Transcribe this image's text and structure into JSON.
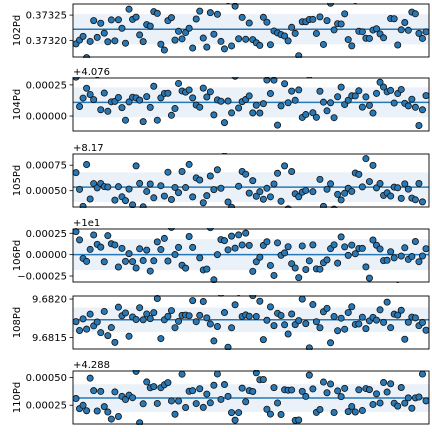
{
  "figure": {
    "background": "#ffffff",
    "band_color": "#eaf1f8",
    "point_fill": "#2878b5",
    "point_stroke": "#111111",
    "line_color": "#2878b5"
  },
  "chart_data": [
    {
      "type": "scatter",
      "ylabel": "102Pd",
      "offset_text": "",
      "yticks": [
        "0.37325",
        "0.37320"
      ],
      "ytick_values": [
        0.37325,
        0.3732
      ],
      "ylim": [
        0.373167,
        0.373272
      ],
      "band": [
        0.373192,
        0.373252
      ],
      "mean": 0.373222,
      "seed": 11,
      "n_points": 100
    },
    {
      "type": "scatter",
      "ylabel": "104Pd",
      "offset_text": "+4.076",
      "yticks": [
        "0.00025",
        "0.00000"
      ],
      "ytick_values": [
        0.00025,
        0.0
      ],
      "ylim": [
        -0.00012,
        0.000305
      ],
      "band": [
        -1e-05,
        0.00023
      ],
      "mean": 0.00011,
      "seed": 23,
      "n_points": 100
    },
    {
      "type": "scatter",
      "ylabel": "105Pd",
      "offset_text": "+8.17",
      "yticks": [
        "0.00075",
        "0.00050"
      ],
      "ytick_values": [
        0.00075,
        0.0005
      ],
      "ylim": [
        0.00034,
        0.00086
      ],
      "band": [
        0.00039,
        0.00068
      ],
      "mean": 0.000535,
      "seed": 37,
      "n_points": 100
    },
    {
      "type": "scatter",
      "ylabel": "106Pd",
      "offset_text": "+1e1",
      "yticks": [
        "0.00025",
        "0.00000",
        "−0.00025"
      ],
      "ytick_values": [
        0.00025,
        0.0,
        -0.00025
      ],
      "ylim": [
        -0.00032,
        0.0003
      ],
      "band": [
        -0.00018,
        0.00018
      ],
      "mean": 0.0,
      "seed": 51,
      "n_points": 100
    },
    {
      "type": "scatter",
      "ylabel": "108Pd",
      "offset_text": "",
      "yticks": [
        "9.6820",
        "9.6815"
      ],
      "ytick_values": [
        9.682,
        9.6815
      ],
      "ylim": [
        9.68135,
        9.68204
      ],
      "band": [
        9.68157,
        9.68189
      ],
      "mean": 9.68173,
      "seed": 67,
      "n_points": 100
    },
    {
      "type": "scatter",
      "ylabel": "110Pd",
      "offset_text": "+4.288",
      "yticks": [
        "0.00050",
        "0.00025"
      ],
      "ytick_values": [
        0.0005,
        0.00025
      ],
      "ylim": [
        8e-05,
        0.00056
      ],
      "band": [
        0.00019,
        0.00044
      ],
      "mean": 0.000315,
      "seed": 83,
      "n_points": 100
    }
  ]
}
